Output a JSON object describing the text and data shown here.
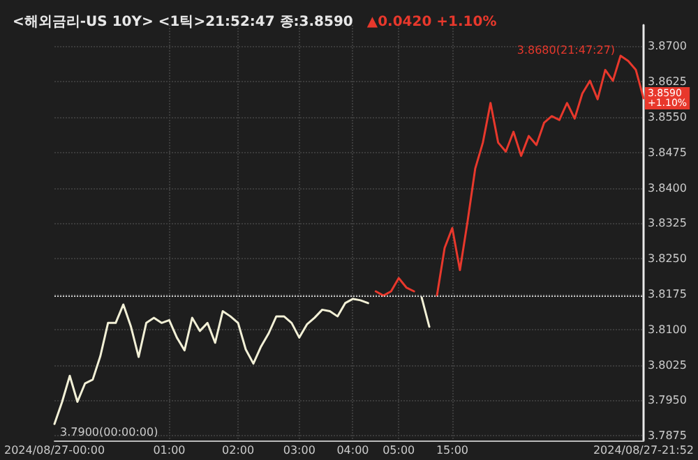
{
  "chart_data": {
    "type": "line",
    "title": "<해외금리-US 10Y> <1틱>21:52:47 종:3.8590",
    "subtitle": "▲0.0420 +1.10%",
    "categories": [
      "2024/08/27-00:00",
      null,
      null,
      null,
      null,
      null,
      null,
      null,
      null,
      null,
      null,
      null,
      null,
      null,
      null,
      "01:00",
      null,
      null,
      null,
      null,
      null,
      null,
      null,
      null,
      "02:00",
      null,
      null,
      null,
      null,
      null,
      null,
      null,
      "03:00",
      null,
      null,
      null,
      null,
      null,
      null,
      "04:00",
      null,
      null,
      null,
      null,
      null,
      "05:00",
      null,
      null,
      null,
      null,
      null,
      null,
      "15:00",
      null,
      null,
      null,
      null,
      null,
      null,
      null,
      null,
      null,
      null,
      null,
      null,
      null,
      null,
      null,
      null,
      null,
      null,
      null,
      null,
      null,
      null,
      null,
      null,
      "2024/08/27-21:52"
    ],
    "series": [
      {
        "color": "#f2f0d6",
        "values": [
          3.79,
          3.7947,
          3.8002,
          3.7947,
          3.7986,
          3.7994,
          3.8044,
          3.8114,
          3.8114,
          3.8153,
          3.8106,
          3.8042,
          3.8114,
          3.8125,
          3.8114,
          3.812,
          3.8083,
          3.8056,
          3.8125,
          3.8097,
          3.8114,
          3.8072,
          3.8139,
          3.8128,
          3.8114,
          3.8058,
          3.8028,
          3.8064,
          3.8092,
          3.8128,
          3.8128,
          3.8114,
          3.8083,
          3.8111,
          3.8125,
          3.8142,
          3.8139,
          3.8128,
          3.8156,
          3.8165,
          3.8162,
          3.8156,
          null,
          null,
          null,
          null,
          null,
          null,
          3.8168,
          3.8106,
          null,
          null,
          null,
          null,
          null,
          null,
          null,
          null,
          null,
          null,
          null,
          null,
          null,
          null,
          null,
          null,
          null,
          null,
          null,
          null,
          null,
          null,
          null,
          null,
          null,
          null,
          null,
          null
        ]
      },
      {
        "color": "#e8382c",
        "values": [
          null,
          null,
          null,
          null,
          null,
          null,
          null,
          null,
          null,
          null,
          null,
          null,
          null,
          null,
          null,
          null,
          null,
          null,
          null,
          null,
          null,
          null,
          null,
          null,
          null,
          null,
          null,
          null,
          null,
          null,
          null,
          null,
          null,
          null,
          null,
          null,
          null,
          null,
          null,
          null,
          null,
          null,
          3.8181,
          3.8172,
          3.8181,
          3.8209,
          3.8189,
          3.8181,
          null,
          null,
          3.8172,
          3.8273,
          3.8315,
          3.8226,
          3.8329,
          3.8441,
          3.8496,
          3.858,
          3.8496,
          3.8477,
          3.8519,
          3.8468,
          3.851,
          3.8491,
          3.8538,
          3.8552,
          3.8544,
          3.858,
          3.8547,
          3.86,
          3.8627,
          3.8588,
          3.865,
          3.8627,
          3.868,
          3.8669,
          3.865,
          3.859
        ]
      }
    ],
    "ylim": [
      3.7865,
      3.8745
    ],
    "yticks": [
      {
        "value": 3.7875,
        "label": "3.7875"
      },
      {
        "value": 3.795,
        "label": "3.7950"
      },
      {
        "value": 3.8025,
        "label": "3.8025"
      },
      {
        "value": 3.81,
        "label": "3.8100"
      },
      {
        "value": 3.8175,
        "label": "3.8175"
      },
      {
        "value": 3.825,
        "label": "3.8250"
      },
      {
        "value": 3.8325,
        "label": "3.8325"
      },
      {
        "value": 3.84,
        "label": "3.8400"
      },
      {
        "value": 3.8475,
        "label": "3.8475"
      },
      {
        "value": 3.855,
        "label": "3.8550"
      },
      {
        "value": 3.8625,
        "label": "3.8625"
      },
      {
        "value": 3.87,
        "label": "3.8700"
      }
    ],
    "ref_lines": [
      {
        "axis": "y",
        "value": 3.817,
        "color": "#d0d0d0",
        "line_style": "dotted"
      }
    ],
    "annotations": [
      "3.8680(21:47:27)",
      "3.7900(00:00:00)",
      "3.8590\n+1.10%"
    ],
    "grid": true,
    "marker": "none",
    "line_style": "solid"
  }
}
